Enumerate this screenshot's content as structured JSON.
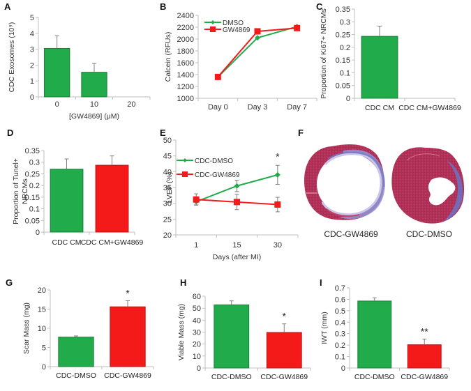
{
  "colors": {
    "green": "#22ab4a",
    "green_edge": "#1a7d36",
    "red": "#f51a1a",
    "red_edge": "#b31212",
    "tissue_red": "#b8345a",
    "fibrosis_blue": "#6a74c4"
  },
  "chart_data": [
    {
      "id": "A",
      "type": "bar",
      "panel_letter": "A",
      "title": "",
      "xlabel": "[GW4869] (μM)",
      "ylabel": "CDC Exosomes (10⁹)",
      "categories": [
        "0",
        "10",
        "20"
      ],
      "values": [
        3.05,
        1.55,
        0
      ],
      "errors": [
        0.8,
        0.55,
        0
      ],
      "bar_colors": [
        "green",
        "green",
        "green"
      ],
      "ylim": [
        0,
        5
      ],
      "yticks": [
        0,
        1,
        2,
        3,
        4,
        5
      ],
      "ytick_labels": [
        "0",
        "1",
        "2",
        "3",
        "4",
        "5"
      ],
      "grid": false,
      "annotations": []
    },
    {
      "id": "B",
      "type": "line",
      "panel_letter": "B",
      "title": "",
      "xlabel": "",
      "ylabel": "Calcein (RFUs)",
      "categories": [
        "Day 0",
        "Day 3",
        "Day 7"
      ],
      "series": [
        {
          "name": "DMSO",
          "color": "green",
          "marker": "diamond",
          "values": [
            1360,
            2020,
            2210
          ]
        },
        {
          "name": "GW4869",
          "color": "red",
          "marker": "square",
          "values": [
            1360,
            2130,
            2185
          ]
        }
      ],
      "ylim": [
        1000,
        2400
      ],
      "yticks": [
        1000,
        1200,
        1400,
        1600,
        1800,
        2000,
        2200,
        2400
      ],
      "ytick_labels": [
        "1000",
        "1200",
        "1400",
        "1600",
        "1800",
        "2000",
        "2200",
        "2400"
      ],
      "legend_position": "top-left",
      "grid": false
    },
    {
      "id": "C",
      "type": "bar",
      "panel_letter": "C",
      "title": "",
      "xlabel": "",
      "ylabel": "Proportion of Ki67+ NRCMs",
      "categories": [
        "CDC CM",
        "CDC CM+GW4869"
      ],
      "values": [
        0.243,
        0
      ],
      "errors": [
        0.04,
        0
      ],
      "bar_colors": [
        "green",
        "green"
      ],
      "ylim": [
        0,
        0.35
      ],
      "yticks": [
        0,
        0.05,
        0.1,
        0.15,
        0.2,
        0.25,
        0.3,
        0.35
      ],
      "ytick_labels": [
        "0",
        "0.05",
        "0.1",
        "0.15",
        "0.2",
        "0.25",
        "0.3",
        "0.35"
      ],
      "grid": false,
      "annotations": []
    },
    {
      "id": "D",
      "type": "bar",
      "panel_letter": "D",
      "title": "",
      "xlabel": "",
      "ylabel": "Proportion of Tunel+ NRCMs",
      "ylabel_lines": [
        "Proportion of Tunel+",
        "NRCMs"
      ],
      "categories": [
        "CDC CM",
        "CDC CM+GW4869"
      ],
      "values": [
        0.27,
        0.287
      ],
      "errors": [
        0.044,
        0.04
      ],
      "bar_colors": [
        "green",
        "red"
      ],
      "ylim": [
        0,
        0.35
      ],
      "yticks": [
        0,
        0.05,
        0.1,
        0.15,
        0.2,
        0.25,
        0.3,
        0.35
      ],
      "ytick_labels": [
        "0",
        "0.05",
        "0.1",
        "0.15",
        "0.2",
        "0.25",
        "0.3",
        "0.35"
      ],
      "grid": false,
      "annotations": []
    },
    {
      "id": "E",
      "type": "line",
      "panel_letter": "E",
      "title": "",
      "xlabel": "Days (after MI)",
      "ylabel": "LVEF (%)",
      "categories": [
        "1",
        "15",
        "30"
      ],
      "series": [
        {
          "name": "CDC-DMSO",
          "color": "green",
          "marker": "diamond",
          "values": [
            30.5,
            35.5,
            39.0
          ],
          "errors": [
            1.0,
            1.8,
            3.0
          ]
        },
        {
          "name": "CDC-GW4869",
          "color": "red",
          "marker": "square",
          "values": [
            31.2,
            30.4,
            29.6
          ],
          "errors": [
            1.8,
            2.4,
            2.3
          ]
        }
      ],
      "ylim": [
        20,
        50
      ],
      "yticks": [
        20,
        25,
        30,
        35,
        40,
        45,
        50
      ],
      "ytick_labels": [
        "20",
        "25",
        "30",
        "35",
        "40",
        "45",
        "50"
      ],
      "legend_position": "left",
      "grid": false,
      "annotations": [
        {
          "category_index": 2,
          "text": "*"
        }
      ]
    },
    {
      "id": "G",
      "type": "bar",
      "panel_letter": "G",
      "title": "",
      "xlabel": "",
      "ylabel": "Scar Mass (mg)",
      "categories": [
        "CDC-DMSO",
        "CDC-GW4869"
      ],
      "values": [
        7.7,
        15.6
      ],
      "errors": [
        0.3,
        1.6
      ],
      "bar_colors": [
        "green",
        "red"
      ],
      "ylim": [
        0,
        20
      ],
      "yticks": [
        0,
        5,
        10,
        15,
        20
      ],
      "ytick_labels": [
        "0",
        "5",
        "10",
        "15",
        "20"
      ],
      "grid": false,
      "annotations": [
        {
          "category_index": 1,
          "text": "*"
        }
      ]
    },
    {
      "id": "H",
      "type": "bar",
      "panel_letter": "H",
      "title": "",
      "xlabel": "",
      "ylabel": "Viable Mass (mg)",
      "categories": [
        "CDC-DMSO",
        "CDC-GW4869"
      ],
      "values": [
        52.8,
        29.7
      ],
      "errors": [
        3.3,
        7.2
      ],
      "bar_colors": [
        "green",
        "red"
      ],
      "ylim": [
        0,
        60
      ],
      "yticks": [
        0,
        10,
        20,
        30,
        40,
        50,
        60
      ],
      "ytick_labels": [
        "0",
        "10",
        "20",
        "30",
        "40",
        "50",
        "60"
      ],
      "grid": false,
      "annotations": [
        {
          "category_index": 1,
          "text": "*"
        }
      ]
    },
    {
      "id": "I",
      "type": "bar",
      "panel_letter": "I",
      "title": "",
      "xlabel": "",
      "ylabel": "IWT (mm)",
      "categories": [
        "CDC-DMSO",
        "CDC-GW4869"
      ],
      "values": [
        0.585,
        0.203
      ],
      "errors": [
        0.028,
        0.05
      ],
      "bar_colors": [
        "green",
        "red"
      ],
      "ylim": [
        0,
        0.7
      ],
      "yticks": [
        0,
        0.1,
        0.2,
        0.3,
        0.4,
        0.5,
        0.6,
        0.7
      ],
      "ytick_labels": [
        "0",
        "0.1",
        "0.2",
        "0.3",
        "0.4",
        "0.5",
        "0.6",
        "0.7"
      ],
      "grid": false,
      "annotations": [
        {
          "category_index": 1,
          "text": "**"
        }
      ]
    }
  ],
  "panel_F": {
    "panel_letter": "F",
    "images": [
      {
        "label": "CDC-GW4869",
        "description": "Masson's trichrome heart cross-section with thin fibrotic wall and dilated lumen"
      },
      {
        "label": "CDC-DMSO",
        "description": "Masson's trichrome heart cross-section with thick viable myocardium"
      }
    ]
  }
}
